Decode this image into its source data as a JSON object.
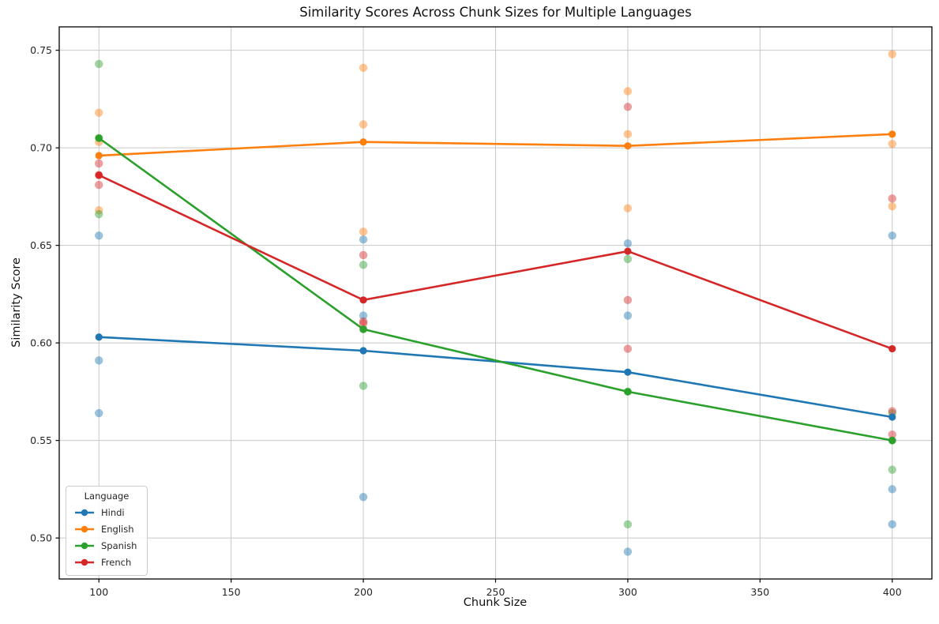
{
  "chart_data": {
    "type": "line",
    "title": "Similarity Scores Across Chunk Sizes for Multiple Languages",
    "xlabel": "Chunk Size",
    "ylabel": "Similarity Score",
    "legend_title": "Language",
    "legend_position": "lower left",
    "grid": true,
    "x": [
      100,
      200,
      300,
      400
    ],
    "xticks": [
      {
        "v": 100,
        "label": "100"
      },
      {
        "v": 150,
        "label": "150"
      },
      {
        "v": 200,
        "label": "200"
      },
      {
        "v": 250,
        "label": "250"
      },
      {
        "v": 300,
        "label": "300"
      },
      {
        "v": 350,
        "label": "350"
      },
      {
        "v": 400,
        "label": "400"
      }
    ],
    "yticks": [
      {
        "v": 0.75,
        "label": "0.75"
      },
      {
        "v": 0.7,
        "label": "0.70"
      },
      {
        "v": 0.65,
        "label": "0.65"
      },
      {
        "v": 0.6,
        "label": "0.60"
      },
      {
        "v": 0.55,
        "label": "0.55"
      },
      {
        "v": 0.5,
        "label": "0.50"
      }
    ],
    "xlim": [
      85,
      415
    ],
    "ylim": [
      0.479,
      0.762
    ],
    "series": [
      {
        "name": "Hindi",
        "color": "#1f77b4",
        "mean_line": [
          0.603,
          0.596,
          0.585,
          0.562
        ],
        "scatter": [
          [
            0.655,
            0.591,
            0.564
          ],
          [
            0.653,
            0.614,
            0.521
          ],
          [
            0.651,
            0.614,
            0.493
          ],
          [
            0.655,
            0.525,
            0.507
          ]
        ]
      },
      {
        "name": "English",
        "color": "#ff7f0e",
        "mean_line": [
          0.696,
          0.703,
          0.701,
          0.707
        ],
        "scatter": [
          [
            0.718,
            0.703,
            0.668
          ],
          [
            0.741,
            0.712,
            0.657
          ],
          [
            0.729,
            0.707,
            0.669
          ],
          [
            0.748,
            0.702,
            0.67
          ]
        ]
      },
      {
        "name": "Spanish",
        "color": "#2ca02c",
        "mean_line": [
          0.705,
          0.607,
          0.575,
          0.55
        ],
        "scatter": [
          [
            0.743,
            0.705,
            0.666
          ],
          [
            0.64,
            0.607,
            0.578
          ],
          [
            0.643,
            0.575,
            0.507
          ],
          [
            0.564,
            0.55,
            0.535
          ]
        ]
      },
      {
        "name": "French",
        "color": "#d62728",
        "mean_line": [
          0.686,
          0.622,
          0.647,
          0.597
        ],
        "scatter": [
          [
            0.692,
            0.686,
            0.681
          ],
          [
            0.645,
            0.611,
            0.61
          ],
          [
            0.721,
            0.622,
            0.597
          ],
          [
            0.674,
            0.565,
            0.553
          ]
        ]
      }
    ]
  }
}
